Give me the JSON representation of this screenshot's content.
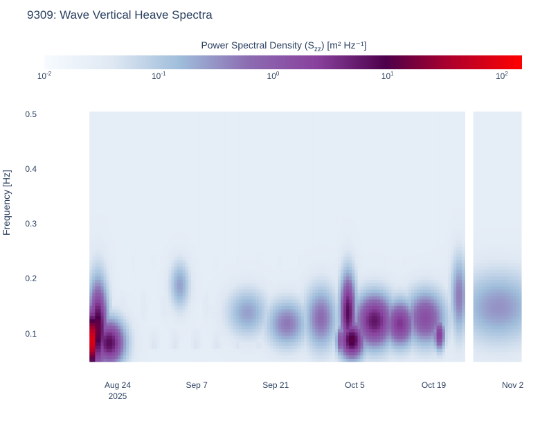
{
  "chart_data": {
    "type": "heatmap",
    "title": "9309: Wave Vertical Heave Spectra",
    "ylabel": "Frequency [Hz]",
    "xlabel": "",
    "colorbar": {
      "title_prefix": "Power Spectral Density (S",
      "title_sub": "zz",
      "title_suffix": ") [m² Hz⁻¹]",
      "scale": "log",
      "range": [
        0.01,
        150
      ],
      "ticks": [
        {
          "base": "10",
          "exp": "-2",
          "value": 0.01
        },
        {
          "base": "10",
          "exp": "-1",
          "value": 0.1
        },
        {
          "base": "10",
          "exp": "0",
          "value": 1
        },
        {
          "base": "10",
          "exp": "1",
          "value": 10
        },
        {
          "base": "10",
          "exp": "2",
          "value": 100
        }
      ],
      "colorscale": [
        "#f7fbff",
        "#dfe8f3",
        "#9ebcda",
        "#8c6bb1",
        "#88419d",
        "#4d004b",
        "#b2002a",
        "#ff0000"
      ]
    },
    "yaxis": {
      "range": [
        0.04,
        0.52
      ],
      "ticks": [
        "0.1",
        "0.2",
        "0.3",
        "0.4",
        "0.5"
      ],
      "tick_values": [
        0.1,
        0.2,
        0.3,
        0.4,
        0.5
      ]
    },
    "xaxis": {
      "range_days": [
        -13,
        72
      ],
      "ticks": [
        {
          "label": "Aug 24",
          "sub": "2025",
          "day": 0
        },
        {
          "label": "Sep 7",
          "sub": "",
          "day": 14
        },
        {
          "label": "Sep 21",
          "sub": "",
          "day": 28
        },
        {
          "label": "Oct 5",
          "sub": "",
          "day": 42
        },
        {
          "label": "Oct 19",
          "sub": "",
          "day": 56
        },
        {
          "label": "Nov 2",
          "sub": "",
          "day": 70
        }
      ],
      "data_start_day": -5,
      "data_end_day": 71.5,
      "gap_start_day": 61.5,
      "gap_end_day": 63
    },
    "events": [
      {
        "day": -4.5,
        "freq": 0.09,
        "log_psd": 2.1,
        "day_spread": 0.7,
        "freq_spread": 0.045
      },
      {
        "day": -3.5,
        "freq": 0.11,
        "log_psd": 1.2,
        "day_spread": 1.2,
        "freq_spread": 0.06
      },
      {
        "day": -1.5,
        "freq": 0.085,
        "log_psd": 0.9,
        "day_spread": 2.0,
        "freq_spread": 0.03
      },
      {
        "day": 11.0,
        "freq": 0.19,
        "log_psd": -0.6,
        "day_spread": 1.2,
        "freq_spread": 0.03
      },
      {
        "day": 23.0,
        "freq": 0.14,
        "log_psd": -0.6,
        "day_spread": 2.5,
        "freq_spread": 0.03
      },
      {
        "day": 30.0,
        "freq": 0.12,
        "log_psd": -0.3,
        "day_spread": 2.5,
        "freq_spread": 0.03
      },
      {
        "day": 36.0,
        "freq": 0.13,
        "log_psd": -0.2,
        "day_spread": 2.0,
        "freq_spread": 0.04
      },
      {
        "day": 39.5,
        "freq": 0.09,
        "log_psd": 0.2,
        "day_spread": 0.6,
        "freq_spread": 0.02
      },
      {
        "day": 40.8,
        "freq": 0.14,
        "log_psd": 0.9,
        "day_spread": 1.0,
        "freq_spread": 0.05
      },
      {
        "day": 41.5,
        "freq": 0.09,
        "log_psd": 1.1,
        "day_spread": 1.6,
        "freq_spread": 0.025
      },
      {
        "day": 45.5,
        "freq": 0.125,
        "log_psd": 0.8,
        "day_spread": 2.5,
        "freq_spread": 0.035
      },
      {
        "day": 50.0,
        "freq": 0.12,
        "log_psd": 0.5,
        "day_spread": 2.0,
        "freq_spread": 0.03
      },
      {
        "day": 54.5,
        "freq": 0.13,
        "log_psd": 0.2,
        "day_spread": 2.5,
        "freq_spread": 0.035
      },
      {
        "day": 57.0,
        "freq": 0.1,
        "log_psd": 0.5,
        "day_spread": 0.7,
        "freq_spread": 0.02
      },
      {
        "day": 60.5,
        "freq": 0.17,
        "log_psd": -0.3,
        "day_spread": 1.0,
        "freq_spread": 0.05
      },
      {
        "day": 67.5,
        "freq": 0.15,
        "log_psd": -0.5,
        "day_spread": 5.0,
        "freq_spread": 0.045
      }
    ]
  }
}
